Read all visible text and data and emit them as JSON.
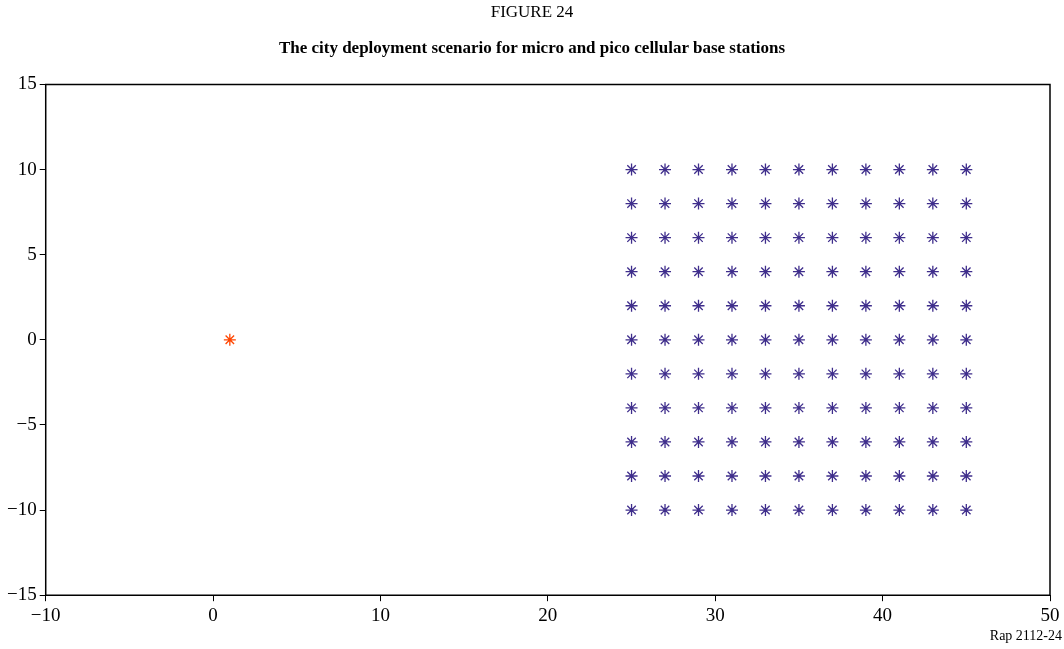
{
  "chart_data": {
    "type": "scatter",
    "title": "FIGURE 24",
    "subtitle": "The city deployment scenario for micro and pico cellular base stations",
    "marker": "cross",
    "grid": false,
    "legend": false,
    "xlim": [
      -10,
      50
    ],
    "xticks": [
      -10,
      0,
      10,
      20,
      30,
      40,
      50
    ],
    "ylim": [
      -15,
      15
    ],
    "yticks": [
      -15,
      -10,
      -5,
      0,
      5,
      10,
      15
    ],
    "annotations": [
      "Rap 2112-24"
    ],
    "series": [
      {
        "color": "#ff4500",
        "x": [
          1
        ],
        "values": [
          0
        ]
      },
      {
        "color": "#3f2e8c",
        "x": [
          25,
          25,
          25,
          25,
          25,
          25,
          25,
          25,
          25,
          25,
          25,
          27,
          27,
          27,
          27,
          27,
          27,
          27,
          27,
          27,
          27,
          27,
          29,
          29,
          29,
          29,
          29,
          29,
          29,
          29,
          29,
          29,
          29,
          31,
          31,
          31,
          31,
          31,
          31,
          31,
          31,
          31,
          31,
          31,
          33,
          33,
          33,
          33,
          33,
          33,
          33,
          33,
          33,
          33,
          33,
          35,
          35,
          35,
          35,
          35,
          35,
          35,
          35,
          35,
          35,
          35,
          37,
          37,
          37,
          37,
          37,
          37,
          37,
          37,
          37,
          37,
          37,
          39,
          39,
          39,
          39,
          39,
          39,
          39,
          39,
          39,
          39,
          39,
          41,
          41,
          41,
          41,
          41,
          41,
          41,
          41,
          41,
          41,
          41,
          43,
          43,
          43,
          43,
          43,
          43,
          43,
          43,
          43,
          43,
          43,
          45,
          45,
          45,
          45,
          45,
          45,
          45,
          45,
          45,
          45,
          45
        ],
        "values": [
          -10,
          -8,
          -6,
          -4,
          -2,
          0,
          2,
          4,
          6,
          8,
          10,
          -10,
          -8,
          -6,
          -4,
          -2,
          0,
          2,
          4,
          6,
          8,
          10,
          -10,
          -8,
          -6,
          -4,
          -2,
          0,
          2,
          4,
          6,
          8,
          10,
          -10,
          -8,
          -6,
          -4,
          -2,
          0,
          2,
          4,
          6,
          8,
          10,
          -10,
          -8,
          -6,
          -4,
          -2,
          0,
          2,
          4,
          6,
          8,
          10,
          -10,
          -8,
          -6,
          -4,
          -2,
          0,
          2,
          4,
          6,
          8,
          10,
          -10,
          -8,
          -6,
          -4,
          -2,
          0,
          2,
          4,
          6,
          8,
          10,
          -10,
          -8,
          -6,
          -4,
          -2,
          0,
          2,
          4,
          6,
          8,
          10,
          -10,
          -8,
          -6,
          -4,
          -2,
          0,
          2,
          4,
          6,
          8,
          10,
          -10,
          -8,
          -6,
          -4,
          -2,
          0,
          2,
          4,
          6,
          8,
          10,
          -10,
          -8,
          -6,
          -4,
          -2,
          0,
          2,
          4,
          6,
          8,
          10
        ]
      }
    ]
  }
}
